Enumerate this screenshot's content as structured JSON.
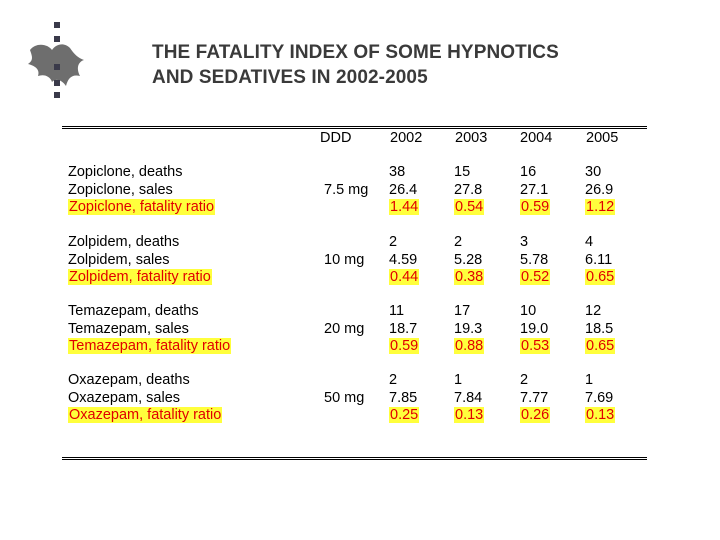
{
  "title": {
    "line1": "THE FATALITY INDEX OF SOME HYPNOTICS",
    "line2": "AND SEDATIVES IN 2002-2005"
  },
  "logo": {
    "name": "university-logo"
  },
  "table": {
    "headers": [
      "DDD",
      "2002",
      "2003",
      "2004",
      "2005"
    ],
    "groups": [
      {
        "labels": [
          "Zopiclone, deaths",
          "Zopiclone, sales",
          "Zopiclone, fatality ratio"
        ],
        "ddd": "7.5 mg",
        "years": [
          {
            "deaths": "38",
            "sales": "26.4",
            "ratio": "1.44"
          },
          {
            "deaths": "15",
            "sales": "27.8",
            "ratio": "0.54"
          },
          {
            "deaths": "16",
            "sales": "27.1",
            "ratio": "0.59"
          },
          {
            "deaths": "30",
            "sales": "26.9",
            "ratio": "1.12"
          }
        ]
      },
      {
        "labels": [
          "Zolpidem, deaths",
          "Zolpidem, sales",
          "Zolpidem, fatality ratio"
        ],
        "ddd": "10 mg",
        "years": [
          {
            "deaths": "2",
            "sales": "4.59",
            "ratio": "0.44"
          },
          {
            "deaths": "2",
            "sales": "5.28",
            "ratio": "0.38"
          },
          {
            "deaths": "3",
            "sales": "5.78",
            "ratio": "0.52"
          },
          {
            "deaths": "4",
            "sales": "6.11",
            "ratio": "0.65"
          }
        ]
      },
      {
        "labels": [
          "Temazepam, deaths",
          "Temazepam, sales",
          "Temazepam, fatality ratio"
        ],
        "ddd": "20 mg",
        "years": [
          {
            "deaths": "11",
            "sales": "18.7",
            "ratio": "0.59"
          },
          {
            "deaths": "17",
            "sales": "19.3",
            "ratio": "0.88"
          },
          {
            "deaths": "10",
            "sales": "19.0",
            "ratio": "0.53"
          },
          {
            "deaths": "12",
            "sales": "18.5",
            "ratio": "0.65"
          }
        ]
      },
      {
        "labels": [
          "Oxazepam, deaths",
          "Oxazepam, sales",
          "Oxazepam, fatality ratio"
        ],
        "ddd": "50 mg",
        "years": [
          {
            "deaths": "2",
            "sales": "7.85",
            "ratio": "0.25"
          },
          {
            "deaths": "1",
            "sales": "7.84",
            "ratio": "0.13"
          },
          {
            "deaths": "2",
            "sales": "7.77",
            "ratio": "0.26"
          },
          {
            "deaths": "1",
            "sales": "7.69",
            "ratio": "0.13"
          }
        ]
      }
    ]
  },
  "colors": {
    "highlight_bg": "#ffff3c",
    "highlight_text": "#e00000",
    "title_text": "#3a3a3a"
  }
}
